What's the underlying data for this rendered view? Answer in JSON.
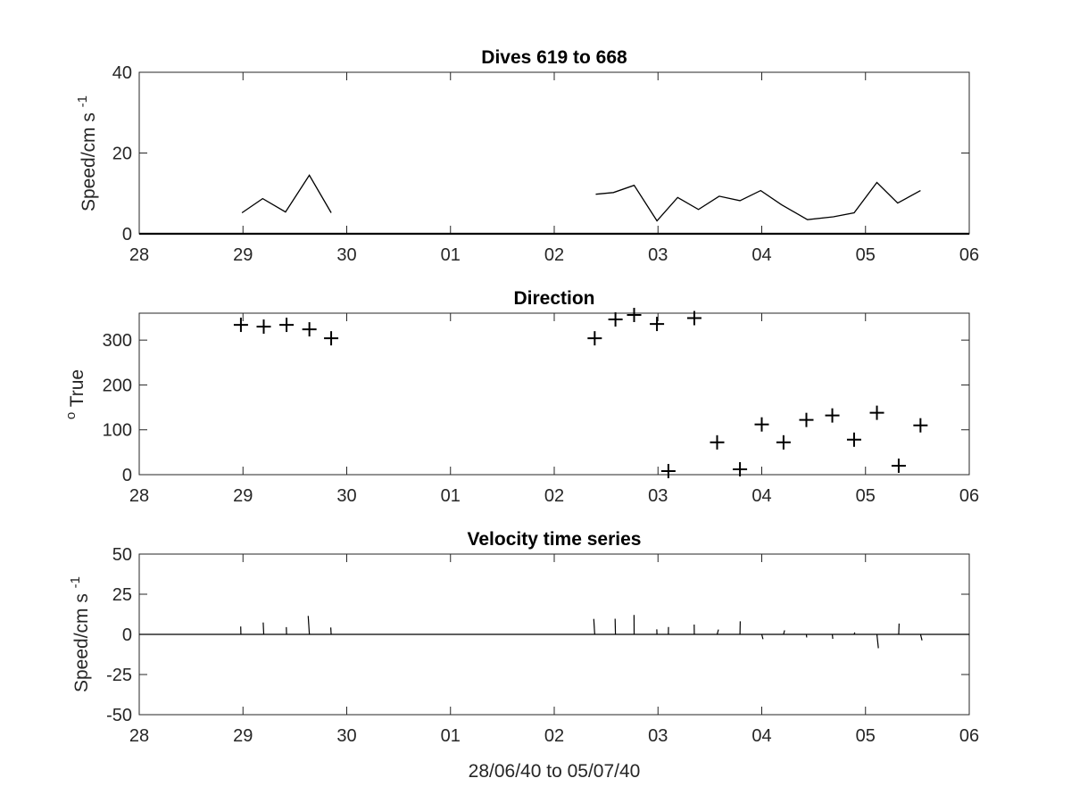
{
  "chart_data": [
    {
      "type": "line",
      "title": "Dives 619 to 668",
      "ylabel": "Speed/cm s",
      "ylabel_sup": "-1",
      "xlim": [
        0,
        8
      ],
      "ylim": [
        0,
        40
      ],
      "x_ticks": [
        0,
        1,
        2,
        3,
        4,
        5,
        6,
        7,
        8
      ],
      "x_tick_labels": [
        "28",
        "29",
        "30",
        "01",
        "02",
        "03",
        "04",
        "05",
        "06"
      ],
      "y_ticks": [
        0,
        20,
        40
      ],
      "y_tick_labels": [
        "0",
        "20",
        "40"
      ],
      "series": [
        {
          "segments": [
            [
              [
                0.99,
                5.2
              ],
              [
                1.19,
                8.7
              ],
              [
                1.41,
                5.4
              ],
              [
                1.64,
                14.5
              ],
              [
                1.85,
                5.2
              ]
            ],
            [
              [
                4.4,
                9.8
              ],
              [
                4.57,
                10.2
              ],
              [
                4.77,
                12.0
              ],
              [
                4.99,
                3.2
              ],
              [
                5.19,
                9.0
              ],
              [
                5.39,
                6.0
              ],
              [
                5.59,
                9.3
              ],
              [
                5.79,
                8.2
              ],
              [
                5.99,
                10.7
              ],
              [
                6.19,
                7.2
              ],
              [
                6.44,
                3.5
              ],
              [
                6.69,
                4.2
              ],
              [
                6.89,
                5.2
              ],
              [
                7.11,
                12.7
              ],
              [
                7.31,
                7.6
              ],
              [
                7.53,
                10.7
              ]
            ]
          ],
          "color": "#000000"
        }
      ],
      "grid": false
    },
    {
      "type": "scatter",
      "title": "Direction",
      "ylabel": "True",
      "ylabel_pre_sup": "o",
      "xlim": [
        0,
        8
      ],
      "ylim": [
        0,
        360
      ],
      "x_ticks": [
        0,
        1,
        2,
        3,
        4,
        5,
        6,
        7,
        8
      ],
      "x_tick_labels": [
        "28",
        "29",
        "30",
        "01",
        "02",
        "03",
        "04",
        "05",
        "06"
      ],
      "y_ticks": [
        0,
        100,
        200,
        300
      ],
      "y_tick_labels": [
        "0",
        "100",
        "200",
        "300"
      ],
      "series": [
        {
          "marker": "+",
          "x": [
            0.98,
            1.2,
            1.42,
            1.64,
            1.85,
            4.39,
            4.59,
            4.77,
            4.99,
            5.1,
            5.35,
            5.57,
            5.79,
            6.0,
            6.21,
            6.43,
            6.68,
            6.89,
            7.11,
            7.32,
            7.53
          ],
          "y": [
            334,
            330,
            334,
            324,
            304,
            304,
            346,
            356,
            336,
            8,
            349,
            72,
            12,
            112,
            72,
            122,
            132,
            78,
            138,
            20,
            110
          ],
          "color": "#000000"
        }
      ],
      "grid": false
    },
    {
      "type": "vector",
      "title": "Velocity time series",
      "ylabel": "Speed/cm s",
      "ylabel_sup": "-1",
      "xlabel": "28/06/40 to 05/07/40",
      "xlim": [
        0,
        8
      ],
      "ylim": [
        -50,
        50
      ],
      "x_ticks": [
        0,
        1,
        2,
        3,
        4,
        5,
        6,
        7,
        8
      ],
      "x_tick_labels": [
        "28",
        "29",
        "30",
        "01",
        "02",
        "03",
        "04",
        "05",
        "06"
      ],
      "y_ticks": [
        -50,
        -25,
        0,
        25,
        50
      ],
      "y_tick_labels": [
        "-50",
        "-25",
        "0",
        "25",
        "50"
      ],
      "vectors": {
        "x": [
          0.98,
          1.2,
          1.42,
          1.64,
          1.85,
          4.39,
          4.59,
          4.77,
          4.99,
          5.1,
          5.35,
          5.57,
          5.79,
          6.0,
          6.21,
          6.43,
          6.68,
          6.89,
          7.11,
          7.32,
          7.53
        ],
        "u": [
          -1.4,
          -3.6,
          -1.6,
          -7.6,
          -2.8,
          -5.6,
          -2.0,
          -0.8,
          -1.2,
          0.6,
          -1.0,
          8.4,
          1.6,
          8.0,
          6.6,
          2.2,
          3.2,
          4.8,
          9.0,
          2.4,
          9.8
        ],
        "v": [
          4.9,
          7.4,
          4.5,
          11.5,
          4.3,
          9.6,
          9.7,
          12.1,
          3.1,
          4.6,
          6.1,
          3.0,
          8.1,
          -3.0,
          2.5,
          -1.9,
          -2.8,
          1.2,
          -8.6,
          6.7,
          -3.7
        ]
      },
      "grid": false
    }
  ]
}
